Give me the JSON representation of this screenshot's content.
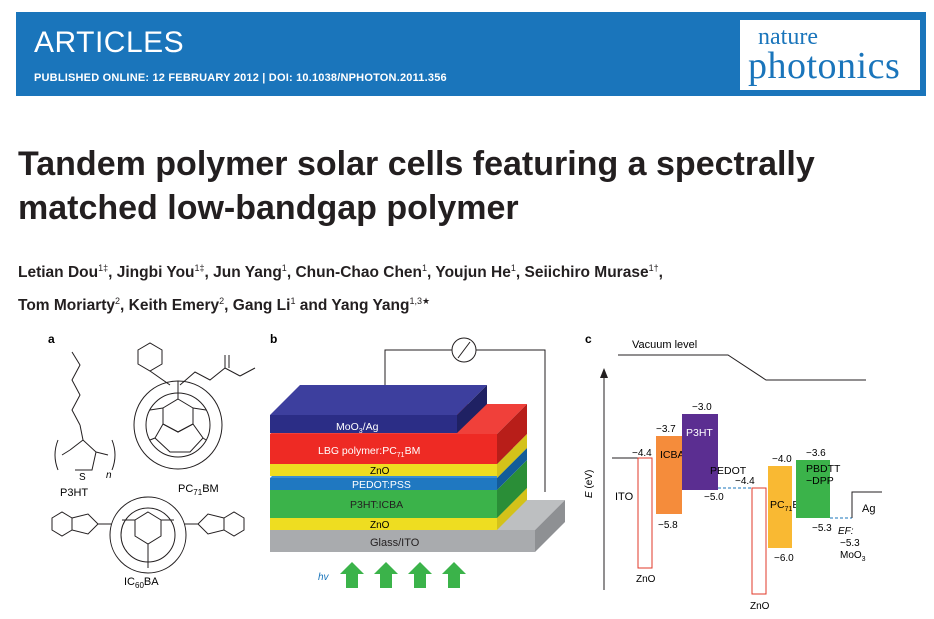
{
  "header": {
    "section": "ARTICLES",
    "published": "PUBLISHED ONLINE: 12 FEBRUARY 2012 | DOI: 10.1038/NPHOTON.2011.356",
    "journal_line1": "nature",
    "journal_line2": "photonics"
  },
  "article": {
    "title_line1": "Tandem polymer solar cells featuring a spectrally",
    "title_line2": "matched low-bandgap polymer"
  },
  "authors": [
    {
      "name": "Letian Dou",
      "sup": "1‡"
    },
    {
      "name": "Jingbi You",
      "sup": "1‡"
    },
    {
      "name": "Jun Yang",
      "sup": "1"
    },
    {
      "name": "Chun-Chao Chen",
      "sup": "1"
    },
    {
      "name": "Youjun He",
      "sup": "1"
    },
    {
      "name": "Seiichiro Murase",
      "sup": "1†"
    },
    {
      "name": "Tom Moriarty",
      "sup": "2"
    },
    {
      "name": "Keith Emery",
      "sup": "2"
    },
    {
      "name": "Gang Li",
      "sup": "1"
    },
    {
      "name": "Yang Yang",
      "sup": "1,3★"
    }
  ],
  "figure": {
    "panel_a": {
      "label": "a",
      "molecules": [
        "P3HT",
        "PC71BM",
        "IC60BA"
      ],
      "n_label": "n",
      "s_label": "S"
    },
    "panel_b": {
      "label": "b",
      "layers": [
        "MoO3/Ag",
        "LBG polymer:PC71BM",
        "ZnO",
        "PEDOT:PSS",
        "P3HT:ICBA",
        "ZnO",
        "Glass/ITO"
      ],
      "hv": "hv"
    },
    "panel_c": {
      "label": "c",
      "vacuum": "Vacuum level",
      "axis": "E (eV)",
      "ito": "ITO",
      "icba": "ICBA",
      "p3ht": "P3HT",
      "pedot": "PEDOT",
      "pc71bm": "PC71BM",
      "pbdtt": "PBDTT",
      "dpp": "−DPP",
      "ag": "Ag",
      "ef": "EF:",
      "moo3": "MoO3",
      "zno": "ZnO",
      "values": {
        "ito_left": "−4.4",
        "icba_top": "−3.7",
        "icba_bot": "−5.8",
        "p3ht_top": "−3.0",
        "p3ht_bot": "−5.0",
        "ito_right": "−4.4",
        "pc_top": "−4.0",
        "pc_bot": "−6.0",
        "pb_top": "−3.6",
        "pb_bot": "−5.3",
        "ef_val": "−5.3"
      }
    }
  }
}
